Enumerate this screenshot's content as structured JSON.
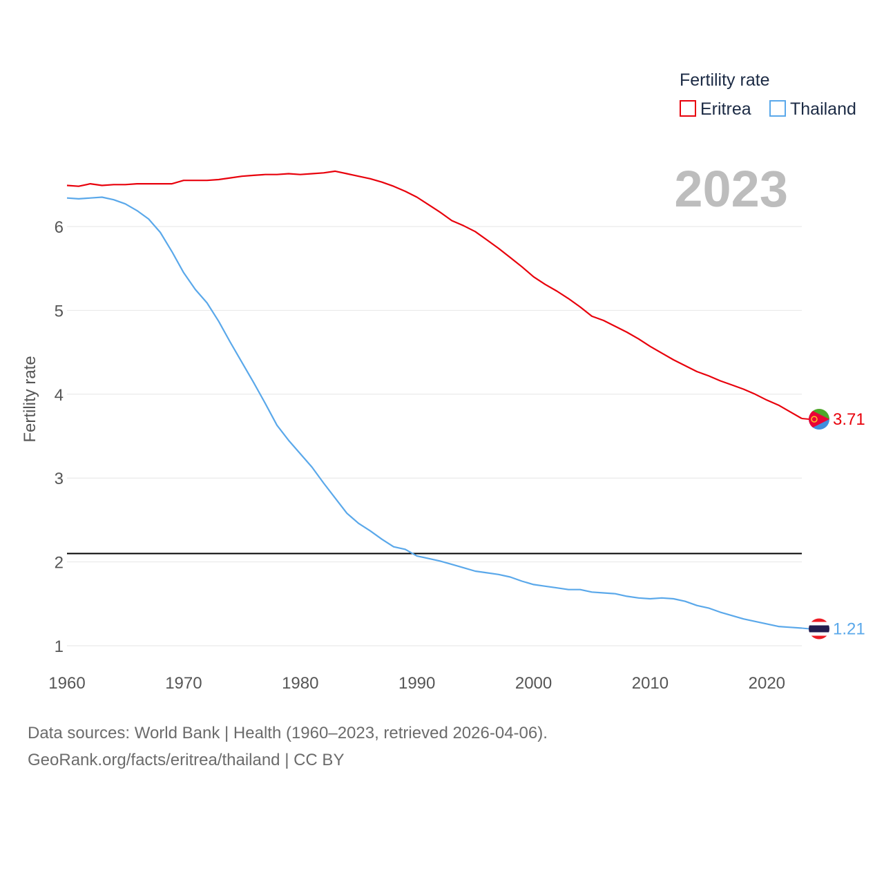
{
  "legend": {
    "title": "Fertility rate"
  },
  "year_label": "2023",
  "footer": {
    "sources": "Data sources: World Bank | Health (1960–2023, retrieved 2026-04-06).",
    "link": "GeoRank.org/facts/eritrea/thailand | CC BY"
  },
  "colors": {
    "eritrea": "#e8000b",
    "thailand": "#5aa8ea",
    "reference": "#000000",
    "grid": "#e6e6e6"
  },
  "chart_data": {
    "type": "line",
    "title": "",
    "xlabel": "",
    "ylabel": "Fertility rate",
    "xlim": [
      1960,
      2023
    ],
    "ylim": [
      0.9,
      6.6
    ],
    "x_ticks": [
      1960,
      1970,
      1980,
      1990,
      2000,
      2010,
      2020
    ],
    "y_ticks": [
      1,
      2,
      3,
      4,
      5,
      6
    ],
    "reference_line": {
      "y": 2.1
    },
    "x": [
      1960,
      1961,
      1962,
      1963,
      1964,
      1965,
      1966,
      1967,
      1968,
      1969,
      1970,
      1971,
      1972,
      1973,
      1974,
      1975,
      1976,
      1977,
      1978,
      1979,
      1980,
      1981,
      1982,
      1983,
      1984,
      1985,
      1986,
      1987,
      1988,
      1989,
      1990,
      1991,
      1992,
      1993,
      1994,
      1995,
      1996,
      1997,
      1998,
      1999,
      2000,
      2001,
      2002,
      2003,
      2004,
      2005,
      2006,
      2007,
      2008,
      2009,
      2010,
      2011,
      2012,
      2013,
      2014,
      2015,
      2016,
      2017,
      2018,
      2019,
      2020,
      2021,
      2022,
      2023
    ],
    "series": [
      {
        "name": "Eritrea",
        "color": "#e8000b",
        "end_label": "3.71",
        "values": [
          6.49,
          6.48,
          6.51,
          6.49,
          6.5,
          6.5,
          6.51,
          6.51,
          6.51,
          6.51,
          6.55,
          6.55,
          6.55,
          6.56,
          6.58,
          6.6,
          6.61,
          6.62,
          6.62,
          6.63,
          6.62,
          6.63,
          6.64,
          6.66,
          6.63,
          6.6,
          6.57,
          6.53,
          6.48,
          6.42,
          6.35,
          6.26,
          6.17,
          6.07,
          6.01,
          5.94,
          5.84,
          5.74,
          5.63,
          5.52,
          5.4,
          5.31,
          5.23,
          5.14,
          5.04,
          4.93,
          4.88,
          4.81,
          4.74,
          4.66,
          4.57,
          4.49,
          4.41,
          4.34,
          4.27,
          4.22,
          4.16,
          4.11,
          4.06,
          4.0,
          3.93,
          3.87,
          3.79,
          3.71
        ]
      },
      {
        "name": "Thailand",
        "color": "#5aa8ea",
        "end_label": "1.21",
        "values": [
          6.34,
          6.33,
          6.34,
          6.35,
          6.32,
          6.27,
          6.19,
          6.09,
          5.93,
          5.7,
          5.45,
          5.25,
          5.09,
          4.87,
          4.62,
          4.38,
          4.14,
          3.89,
          3.63,
          3.45,
          3.29,
          3.13,
          2.94,
          2.76,
          2.58,
          2.46,
          2.37,
          2.27,
          2.18,
          2.15,
          2.07,
          2.04,
          2.01,
          1.97,
          1.93,
          1.89,
          1.87,
          1.85,
          1.82,
          1.77,
          1.73,
          1.71,
          1.69,
          1.67,
          1.67,
          1.64,
          1.63,
          1.62,
          1.59,
          1.57,
          1.56,
          1.57,
          1.56,
          1.53,
          1.48,
          1.45,
          1.4,
          1.36,
          1.32,
          1.29,
          1.26,
          1.23,
          1.22,
          1.21
        ]
      }
    ]
  }
}
